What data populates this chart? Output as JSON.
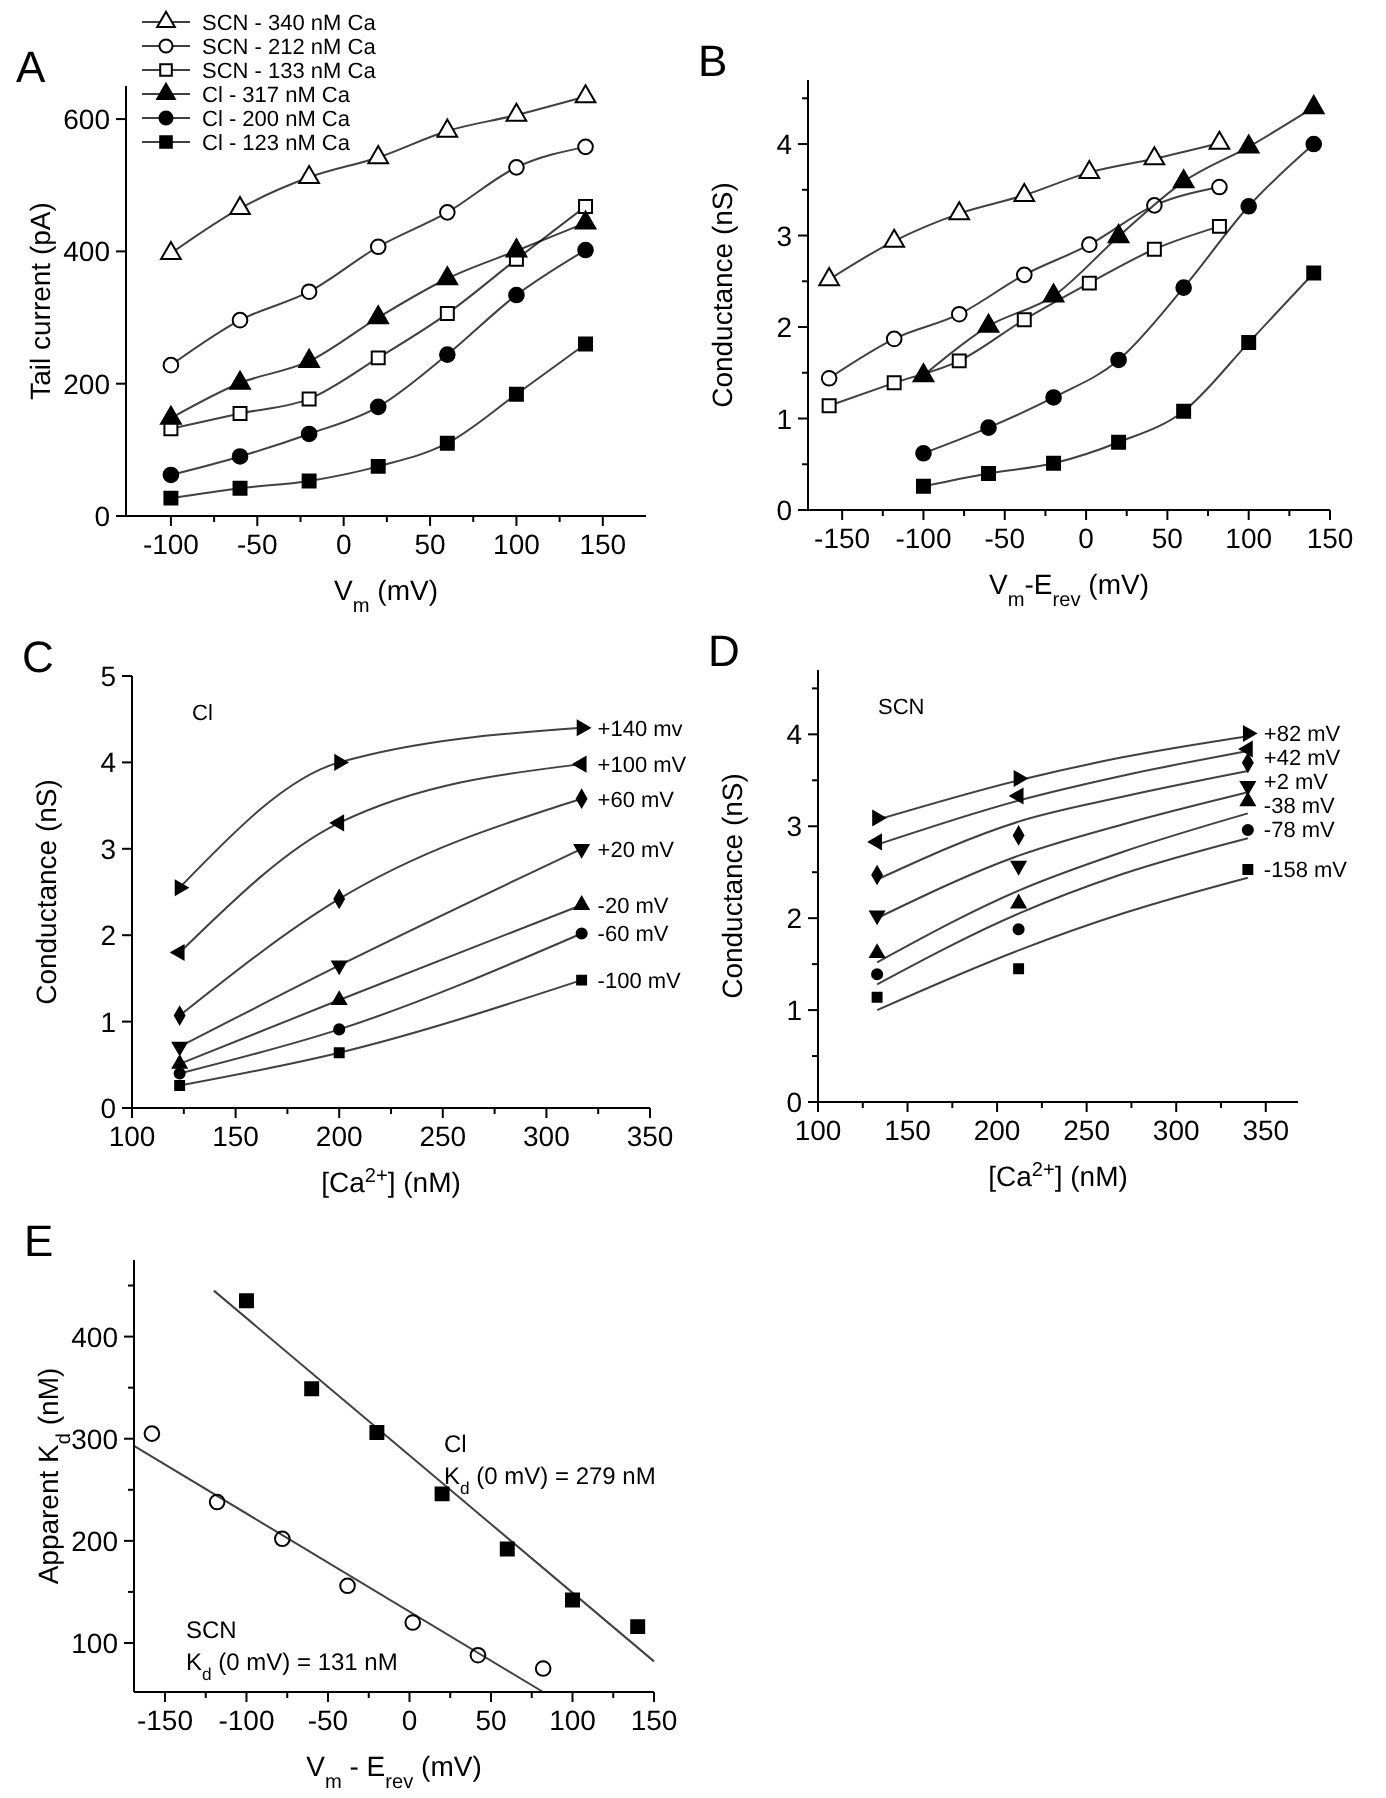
{
  "chart_data": [
    {
      "type": "line",
      "title": "A",
      "xlabel": "V$_{m}$ (mV)",
      "ylabel": "Tail current (pA)",
      "xlim": [
        -126,
        175
      ],
      "ylim": [
        0,
        650
      ],
      "xticks": [
        -100,
        {
          "value": -75,
          "label": null
        },
        -50,
        {
          "value": -25,
          "label": null
        },
        0,
        {
          "value": 25,
          "label": null
        },
        50,
        {
          "value": 75,
          "label": null
        },
        100,
        {
          "value": 125,
          "label": null
        },
        150
      ],
      "yticks": [
        0,
        200,
        400,
        600
      ],
      "legend": "top left",
      "x": [
        -100,
        -60,
        -20,
        20,
        60,
        100,
        140
      ],
      "series": [
        {
          "name": "SCN - 340 nM Ca",
          "color": "#000000",
          "marker": "triangle-open",
          "values": [
            397,
            465,
            512,
            542,
            582,
            606,
            634
          ]
        },
        {
          "name": "SCN - 212 nM Ca",
          "color": "#000000",
          "marker": "circle-open",
          "values": [
            228,
            296,
            339,
            407,
            459,
            527,
            558
          ]
        },
        {
          "name": "SCN - 133 nM Ca",
          "color": "#000000",
          "marker": "square-open",
          "values": [
            132,
            155,
            177,
            239,
            306,
            388,
            468
          ]
        },
        {
          "name": "Cl - 317 nM Ca",
          "color": "#000000",
          "marker": "triangle",
          "values": [
            148,
            201,
            234,
            300,
            359,
            401,
            443
          ]
        },
        {
          "name": "Cl - 200 nM Ca",
          "color": "#000000",
          "marker": "circle",
          "values": [
            62,
            90,
            124,
            165,
            244,
            334,
            402
          ]
        },
        {
          "name": "Cl - 123 nM Ca",
          "color": "#000000",
          "marker": "square",
          "values": [
            27,
            42,
            53,
            75,
            110,
            184,
            260
          ]
        }
      ]
    },
    {
      "type": "line",
      "title": "B",
      "xlabel": "V$_{m}$-E$_{rev}$ (mV)",
      "ylabel": "Conductance (nS)",
      "xlim": [
        -171,
        150
      ],
      "ylim": [
        0,
        4.7
      ],
      "xticks": [
        -150,
        {
          "value": -125,
          "label": null
        },
        -100,
        {
          "value": -75,
          "label": null
        },
        -50,
        {
          "value": -25,
          "label": null
        },
        0,
        {
          "value": 25,
          "label": null
        },
        50,
        {
          "value": 75,
          "label": null
        },
        100,
        {
          "value": 125,
          "label": null
        },
        150
      ],
      "yticks": [
        0,
        {
          "value": 0.5,
          "label": null
        },
        1,
        {
          "value": 1.5,
          "label": null
        },
        2,
        {
          "value": 2.5,
          "label": null
        },
        3,
        {
          "value": 3.5,
          "label": null
        },
        4,
        {
          "value": 4.5,
          "label": null
        }
      ],
      "series": [
        {
          "color": "#000000",
          "marker": "triangle-open",
          "x": [
            -158,
            -118,
            -78,
            -38,
            2,
            42,
            82
          ],
          "values": [
            2.52,
            2.94,
            3.24,
            3.44,
            3.69,
            3.84,
            4.01
          ]
        },
        {
          "color": "#000000",
          "marker": "circle-open",
          "x": [
            -158,
            -118,
            -78,
            -38,
            2,
            42,
            82
          ],
          "values": [
            1.44,
            1.87,
            2.14,
            2.57,
            2.9,
            3.33,
            3.53
          ]
        },
        {
          "color": "#000000",
          "marker": "square-open",
          "x": [
            -158,
            -118,
            -78,
            -38,
            2,
            42,
            82
          ],
          "values": [
            1.14,
            1.39,
            1.63,
            2.08,
            2.48,
            2.85,
            3.1
          ]
        },
        {
          "color": "#000000",
          "marker": "triangle",
          "x": [
            -100,
            -60,
            -20,
            20,
            60,
            100,
            140
          ],
          "values": [
            1.47,
            2.01,
            2.34,
            2.99,
            3.59,
            3.97,
            4.4
          ]
        },
        {
          "color": "#000000",
          "marker": "circle",
          "x": [
            -100,
            -60,
            -20,
            20,
            60,
            100,
            140
          ],
          "values": [
            0.62,
            0.9,
            1.23,
            1.64,
            2.43,
            3.32,
            4.0
          ]
        },
        {
          "color": "#000000",
          "marker": "square",
          "x": [
            -100,
            -60,
            -20,
            20,
            60,
            100,
            140
          ],
          "values": [
            0.26,
            0.4,
            0.51,
            0.74,
            1.08,
            1.83,
            2.59
          ]
        }
      ]
    },
    {
      "type": "line",
      "title": "C",
      "xlabel": "[Ca$^{2+}$] (nM)",
      "ylabel": "Conductance (nS)",
      "xlim": [
        100,
        350
      ],
      "ylim": [
        0,
        5
      ],
      "xticks": [
        100,
        {
          "value": 125,
          "label": null
        },
        150,
        {
          "value": 175,
          "label": null
        },
        200,
        {
          "value": 225,
          "label": null
        },
        250,
        {
          "value": 275,
          "label": null
        },
        300,
        {
          "value": 325,
          "label": null
        },
        350
      ],
      "yticks": [
        0,
        1,
        2,
        3,
        4,
        5
      ],
      "annotations": [
        "Cl"
      ],
      "x": [
        123,
        200,
        317
      ],
      "series": [
        {
          "name": "+140 mv",
          "color": "#000000",
          "marker": "triangle-right",
          "values": [
            2.55,
            4.0,
            4.4
          ]
        },
        {
          "name": "+100 mV",
          "color": "#000000",
          "marker": "triangle-left",
          "values": [
            1.8,
            3.3,
            3.98
          ]
        },
        {
          "name": "+60 mV",
          "color": "#000000",
          "marker": "diamond",
          "values": [
            1.07,
            2.42,
            3.58
          ]
        },
        {
          "name": "+20 mV",
          "color": "#000000",
          "marker": "triangle-down",
          "values": [
            0.71,
            1.65,
            3.0
          ]
        },
        {
          "name": "-20 mV",
          "color": "#000000",
          "marker": "triangle",
          "values": [
            0.51,
            1.25,
            2.35
          ]
        },
        {
          "name": "-60 mV",
          "color": "#000000",
          "marker": "circle",
          "values": [
            0.4,
            0.91,
            2.02
          ]
        },
        {
          "name": "-100 mV",
          "color": "#000000",
          "marker": "square",
          "values": [
            0.26,
            0.64,
            1.48
          ]
        }
      ]
    },
    {
      "type": "scatter",
      "title": "D",
      "xlabel": "[Ca$^{2+}$] (nM)",
      "ylabel": "Conductance (nS)",
      "xlim": [
        100,
        368
      ],
      "ylim": [
        0,
        4.7
      ],
      "xticks": [
        100,
        {
          "value": 125,
          "label": null
        },
        150,
        {
          "value": 175,
          "label": null
        },
        200,
        {
          "value": 225,
          "label": null
        },
        250,
        {
          "value": 275,
          "label": null
        },
        300,
        {
          "value": 325,
          "label": null
        },
        350
      ],
      "yticks": [
        0,
        {
          "value": 0.5,
          "label": null
        },
        1,
        {
          "value": 1.5,
          "label": null
        },
        2,
        {
          "value": 2.5,
          "label": null
        },
        3,
        {
          "value": 3.5,
          "label": null
        },
        4,
        {
          "value": 4.5,
          "label": null
        }
      ],
      "annotations": [
        "SCN"
      ],
      "x": [
        133,
        212,
        340
      ],
      "series": [
        {
          "name": "+82 mV",
          "color": "#000000",
          "marker": "triangle-right",
          "values": [
            3.09,
            3.52,
            4.01
          ]
        },
        {
          "name": "+42 mV",
          "color": "#000000",
          "marker": "triangle-left",
          "values": [
            2.83,
            3.33,
            3.84
          ]
        },
        {
          "name": "+2 mV",
          "color": "#000000",
          "marker": "diamond",
          "values": [
            2.47,
            2.9,
            3.69
          ]
        },
        {
          "name": "-38 mV",
          "color": "#000000",
          "marker": "triangle-down",
          "values": [
            2.03,
            2.57,
            3.44
          ]
        },
        {
          "name": "-78 mV",
          "color": "#000000",
          "marker": "triangle",
          "values": [
            1.62,
            2.16,
            3.27
          ]
        },
        {
          "color": "#000000",
          "marker": "circle",
          "values": [
            1.39,
            1.88,
            2.96
          ]
        },
        {
          "name": "-158 mV",
          "color": "#000000",
          "marker": "square",
          "values": [
            1.14,
            1.45,
            2.53
          ]
        },
        {
          "type": "line",
          "color": "#000000",
          "marker": "none",
          "x": [
            133,
            212,
            270,
            340
          ],
          "values": [
            3.07,
            3.5,
            3.75,
            3.98
          ]
        },
        {
          "type": "line",
          "color": "#000000",
          "marker": "none",
          "x": [
            133,
            212,
            270,
            340
          ],
          "values": [
            2.8,
            3.28,
            3.55,
            3.82
          ]
        },
        {
          "type": "line",
          "color": "#000000",
          "marker": "none",
          "x": [
            133,
            212,
            270,
            340
          ],
          "values": [
            2.42,
            3.05,
            3.32,
            3.6
          ]
        },
        {
          "type": "line",
          "color": "#000000",
          "marker": "none",
          "x": [
            133,
            212,
            270,
            340
          ],
          "values": [
            2.0,
            2.68,
            3.02,
            3.37
          ]
        },
        {
          "type": "line",
          "color": "#000000",
          "marker": "none",
          "x": [
            133,
            212,
            270,
            340
          ],
          "values": [
            1.52,
            2.3,
            2.72,
            3.14
          ]
        },
        {
          "type": "line",
          "color": "#000000",
          "marker": "none",
          "x": [
            133,
            212,
            270,
            340
          ],
          "values": [
            1.28,
            2.05,
            2.48,
            2.87
          ]
        },
        {
          "type": "line",
          "color": "#000000",
          "marker": "none",
          "x": [
            133,
            212,
            270,
            340
          ],
          "values": [
            1.0,
            1.65,
            2.05,
            2.44
          ]
        }
      ]
    },
    {
      "type": "scatter",
      "title": "E",
      "xlabel": "V$_{m}$ - E$_{rev}$ (mV)",
      "ylabel": "Apparent K$_{d}$ (nM)",
      "xlim": [
        -169,
        150
      ],
      "ylim": [
        52,
        475
      ],
      "xticks": [
        -150,
        {
          "value": -125,
          "label": null
        },
        -100,
        {
          "value": -75,
          "label": null
        },
        -50,
        {
          "value": -25,
          "label": null
        },
        0,
        {
          "value": 25,
          "label": null
        },
        50,
        {
          "value": 75,
          "label": null
        },
        100,
        {
          "value": 125,
          "label": null
        },
        150
      ],
      "yticks": [
        100,
        {
          "value": 150,
          "label": null
        },
        200,
        {
          "value": 250,
          "label": null
        },
        300,
        {
          "value": 350,
          "label": null
        },
        400,
        {
          "value": 450,
          "label": null
        }
      ],
      "annotations": [
        "Cl",
        "K$_{d}$ (0 mV) = 279 nM",
        "SCN",
        "K$_{d}$ (0 mV) = 131 nM"
      ],
      "series": [
        {
          "color": "#000000",
          "marker": "square",
          "x": [
            -100,
            -60,
            -20,
            20,
            60,
            100,
            140
          ],
          "values": [
            435,
            349,
            306,
            246,
            192,
            142,
            116
          ]
        },
        {
          "color": "#000000",
          "marker": "circle-open",
          "x": [
            -158,
            -118,
            -78,
            -38,
            2,
            42,
            82
          ],
          "values": [
            305,
            238,
            202,
            156,
            120,
            88,
            75
          ]
        },
        {
          "type": "line",
          "color": "#000000",
          "marker": "none",
          "x": [
            -120,
            150
          ],
          "values": [
            445,
            82
          ]
        },
        {
          "type": "line",
          "color": "#000000",
          "marker": "none",
          "x": [
            -169,
            82
          ],
          "values": [
            293,
            52
          ]
        }
      ]
    }
  ]
}
